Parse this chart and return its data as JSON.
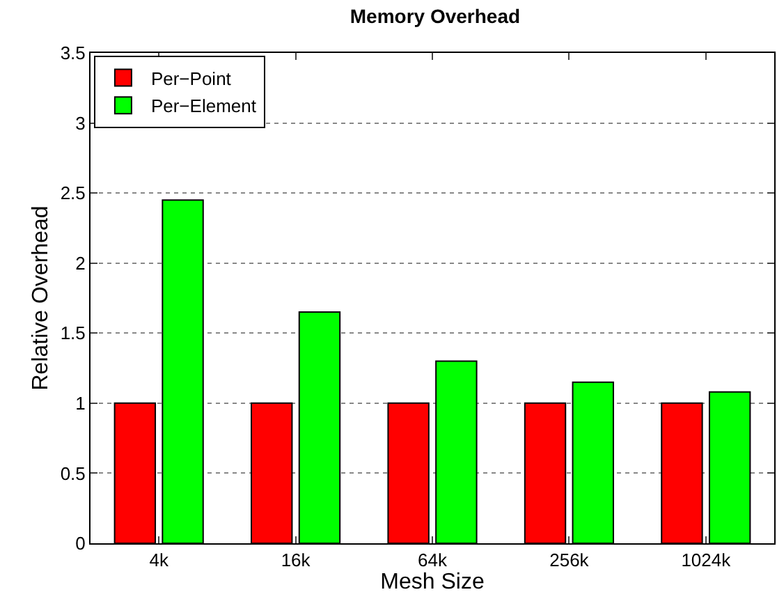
{
  "chart_data": {
    "type": "bar",
    "title": "Memory Overhead",
    "xlabel": "Mesh Size",
    "ylabel": "Relative Overhead",
    "categories": [
      "4k",
      "16k",
      "64k",
      "256k",
      "1024k"
    ],
    "series": [
      {
        "name": "Per−Point",
        "color": "#ff0000",
        "values": [
          1,
          1,
          1,
          1,
          1
        ]
      },
      {
        "name": "Per−Element",
        "color": "#00ff00",
        "values": [
          2.45,
          1.65,
          1.3,
          1.15,
          1.08
        ]
      }
    ],
    "ylim": [
      0,
      3.5
    ],
    "yticks": [
      0,
      0.5,
      1,
      1.5,
      2,
      2.5,
      3,
      3.5
    ],
    "grid": "y",
    "legend": "top left"
  }
}
